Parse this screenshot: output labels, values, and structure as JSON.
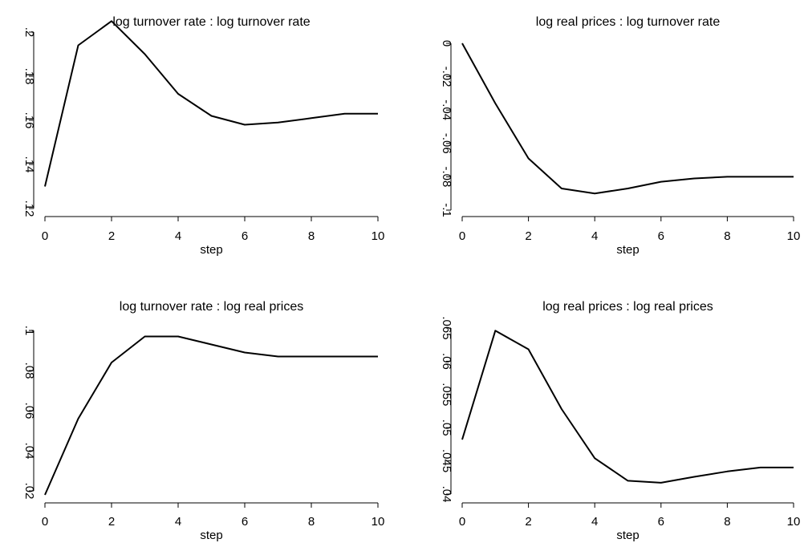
{
  "chart_data": [
    {
      "type": "line",
      "title": "log turnover rate : log turnover rate",
      "xlabel": "step",
      "ylabel": "",
      "x": [
        0,
        1,
        2,
        3,
        4,
        5,
        6,
        7,
        8,
        9,
        10
      ],
      "values": [
        0.13,
        0.194,
        0.205,
        0.19,
        0.172,
        0.162,
        0.158,
        0.159,
        0.161,
        0.163,
        0.163
      ],
      "xlim": [
        0,
        10
      ],
      "ylim": [
        0.12,
        0.2
      ],
      "xticks": [
        0,
        2,
        4,
        6,
        8,
        10
      ],
      "xtick_labels": [
        "0",
        "2",
        "4",
        "6",
        "8",
        "10"
      ],
      "yticks": [
        0.12,
        0.14,
        0.16,
        0.18,
        0.2
      ],
      "ytick_labels": [
        ".12",
        ".14",
        ".16",
        ".18",
        ".2"
      ],
      "grid": false
    },
    {
      "type": "line",
      "title": "log real prices : log turnover rate",
      "xlabel": "step",
      "ylabel": "",
      "x": [
        0,
        1,
        2,
        3,
        4,
        5,
        6,
        7,
        8,
        9,
        10
      ],
      "values": [
        0.0,
        -0.036,
        -0.069,
        -0.087,
        -0.09,
        -0.087,
        -0.083,
        -0.081,
        -0.08,
        -0.08,
        -0.08
      ],
      "xlim": [
        0,
        10
      ],
      "ylim": [
        -0.1,
        0.0
      ],
      "xticks": [
        0,
        2,
        4,
        6,
        8,
        10
      ],
      "xtick_labels": [
        "0",
        "2",
        "4",
        "6",
        "8",
        "10"
      ],
      "yticks": [
        -0.1,
        -0.08,
        -0.06,
        -0.04,
        -0.02,
        0.0
      ],
      "ytick_labels": [
        "-.1",
        "-.08",
        "-.06",
        "-.04",
        "-.02",
        "0"
      ],
      "grid": false
    },
    {
      "type": "line",
      "title": "log turnover rate : log real prices",
      "xlabel": "step",
      "ylabel": "",
      "x": [
        0,
        1,
        2,
        3,
        4,
        5,
        6,
        7,
        8,
        9,
        10
      ],
      "values": [
        0.018,
        0.056,
        0.084,
        0.097,
        0.097,
        0.093,
        0.089,
        0.087,
        0.087,
        0.087,
        0.087
      ],
      "xlim": [
        0,
        10
      ],
      "ylim": [
        0.02,
        0.1
      ],
      "xticks": [
        0,
        2,
        4,
        6,
        8,
        10
      ],
      "xtick_labels": [
        "0",
        "2",
        "4",
        "6",
        "8",
        "10"
      ],
      "yticks": [
        0.02,
        0.04,
        0.06,
        0.08,
        0.1
      ],
      "ytick_labels": [
        ".02",
        ".04",
        ".06",
        ".08",
        ".1"
      ],
      "grid": false
    },
    {
      "type": "line",
      "title": "log real prices : log real prices",
      "xlabel": "step",
      "ylabel": "",
      "x": [
        0,
        1,
        2,
        3,
        4,
        5,
        6,
        7,
        8,
        9,
        10
      ],
      "values": [
        0.0482,
        0.0646,
        0.0618,
        0.0528,
        0.0454,
        0.042,
        0.0417,
        0.0426,
        0.0434,
        0.044,
        0.044
      ],
      "xlim": [
        0,
        10
      ],
      "ylim": [
        0.04,
        0.065
      ],
      "xticks": [
        0,
        2,
        4,
        6,
        8,
        10
      ],
      "xtick_labels": [
        "0",
        "2",
        "4",
        "6",
        "8",
        "10"
      ],
      "yticks": [
        0.04,
        0.045,
        0.05,
        0.055,
        0.06,
        0.065
      ],
      "ytick_labels": [
        ".04",
        ".045",
        ".05",
        ".055",
        ".06",
        ".065"
      ],
      "grid": false
    }
  ]
}
